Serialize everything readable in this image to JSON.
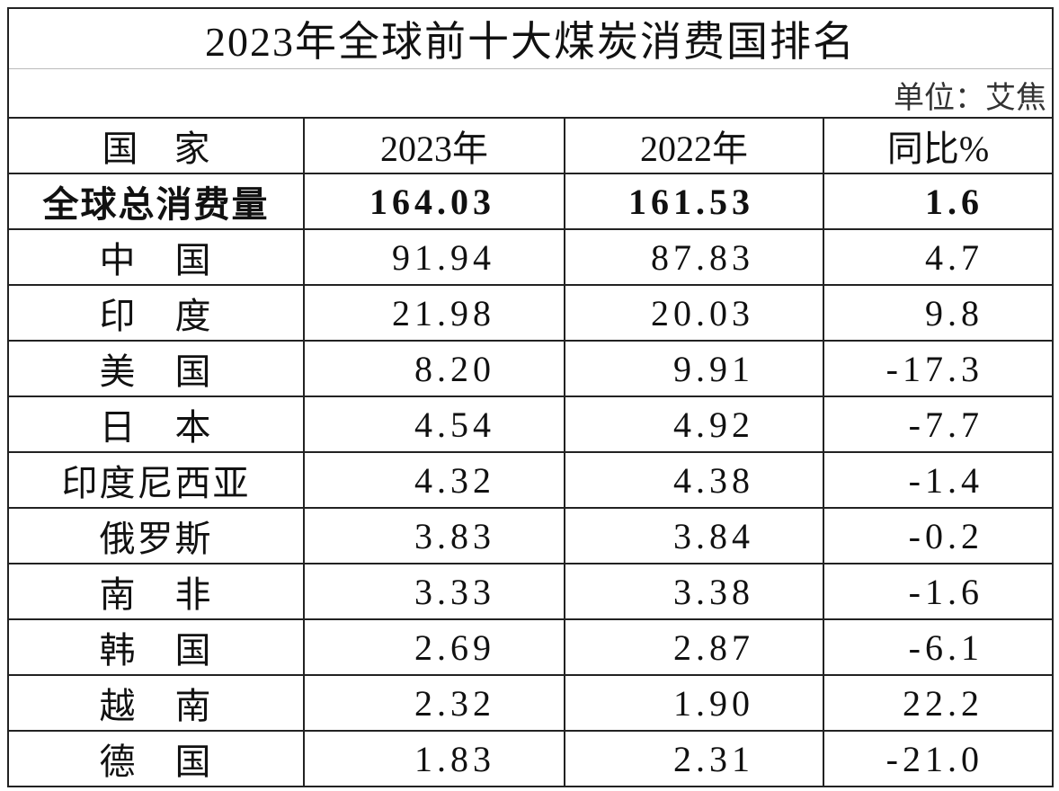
{
  "title": "2023年全球前十大煤炭消费国排名",
  "unit": "单位：艾焦",
  "table": {
    "header": [
      "国　家",
      "2023年",
      "2022年",
      "同比%"
    ],
    "rows": [
      [
        "全球总消费量",
        "164.03",
        "161.53",
        "1.6"
      ],
      [
        "中　国",
        "91.94",
        "87.83",
        "4.7"
      ],
      [
        "印　度",
        "21.98",
        "20.03",
        "9.8"
      ],
      [
        "美　国",
        "8.20",
        "9.91",
        "-17.3"
      ],
      [
        "日　本",
        "4.54",
        "4.92",
        "-7.7"
      ],
      [
        "印度尼西亚",
        "4.32",
        "4.38",
        "-1.4"
      ],
      [
        "俄罗斯",
        "3.83",
        "3.84",
        "-0.2"
      ],
      [
        "南　非",
        "3.33",
        "3.38",
        "-1.6"
      ],
      [
        "韩　国",
        "2.69",
        "2.87",
        "-6.1"
      ],
      [
        "越　南",
        "2.32",
        "1.90",
        "22.2"
      ],
      [
        "德　国",
        "1.83",
        "2.31",
        "-21.0"
      ]
    ]
  }
}
